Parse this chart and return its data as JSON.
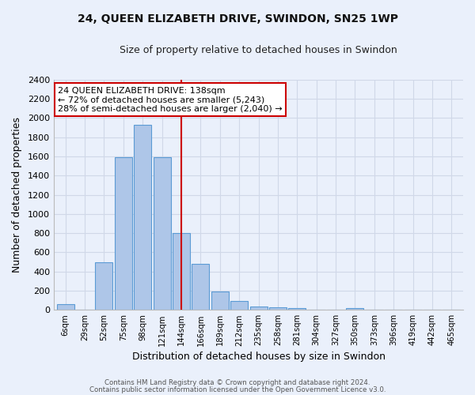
{
  "title": "24, QUEEN ELIZABETH DRIVE, SWINDON, SN25 1WP",
  "subtitle": "Size of property relative to detached houses in Swindon",
  "xlabel": "Distribution of detached houses by size in Swindon",
  "ylabel": "Number of detached properties",
  "footnote1": "Contains HM Land Registry data © Crown copyright and database right 2024.",
  "footnote2": "Contains public sector information licensed under the Open Government Licence v3.0.",
  "categories": [
    "6sqm",
    "29sqm",
    "52sqm",
    "75sqm",
    "98sqm",
    "121sqm",
    "144sqm",
    "166sqm",
    "189sqm",
    "212sqm",
    "235sqm",
    "258sqm",
    "281sqm",
    "304sqm",
    "327sqm",
    "350sqm",
    "373sqm",
    "396sqm",
    "419sqm",
    "442sqm",
    "465sqm"
  ],
  "values": [
    60,
    0,
    500,
    1590,
    1930,
    1590,
    800,
    480,
    195,
    90,
    35,
    28,
    17,
    0,
    0,
    22,
    0,
    0,
    0,
    0,
    0
  ],
  "bar_color": "#aec6e8",
  "bar_edge_color": "#5b9bd5",
  "grid_color": "#d0d8e8",
  "bg_color": "#eaf0fb",
  "vline_x": 6.0,
  "vline_color": "#cc0000",
  "annotation_text": "24 QUEEN ELIZABETH DRIVE: 138sqm\n← 72% of detached houses are smaller (5,243)\n28% of semi-detached houses are larger (2,040) →",
  "annotation_box_color": "#ffffff",
  "annotation_box_edge": "#cc0000",
  "ylim": [
    0,
    2400
  ],
  "yticks": [
    0,
    200,
    400,
    600,
    800,
    1000,
    1200,
    1400,
    1600,
    1800,
    2000,
    2200,
    2400
  ]
}
